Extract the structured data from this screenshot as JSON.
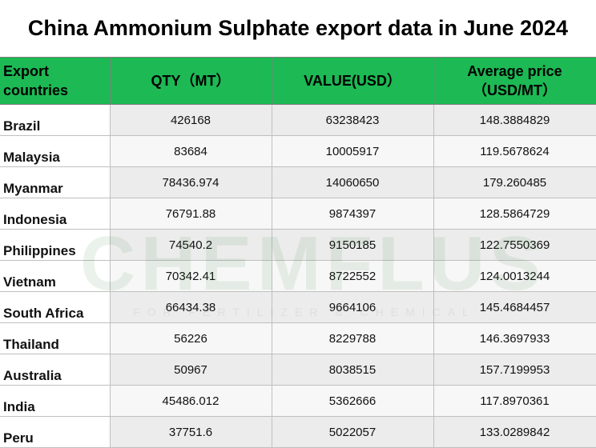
{
  "chart_data": {
    "type": "table",
    "title": "China Ammonium Sulphate export data in June 2024",
    "columns": [
      "Export countries",
      "QTY（MT）",
      "VALUE(USD）",
      "Average price（USD/MT）"
    ],
    "column_lines": [
      [
        "Export",
        "countries"
      ],
      [
        "QTY（MT）"
      ],
      [
        "VALUE(USD）"
      ],
      [
        "Average price",
        "（USD/MT）"
      ]
    ],
    "rows": [
      {
        "country": "Brazil",
        "qty": "426168",
        "value": "63238423",
        "avg_price": "148.3884829"
      },
      {
        "country": "Malaysia",
        "qty": "83684",
        "value": "10005917",
        "avg_price": "119.5678624"
      },
      {
        "country": "Myanmar",
        "qty": "78436.974",
        "value": "14060650",
        "avg_price": "179.260485"
      },
      {
        "country": "Indonesia",
        "qty": "76791.88",
        "value": "9874397",
        "avg_price": "128.5864729"
      },
      {
        "country": "Philippines",
        "qty": "74540.2",
        "value": "9150185",
        "avg_price": "122.7550369"
      },
      {
        "country": "Vietnam",
        "qty": "70342.41",
        "value": "8722552",
        "avg_price": "124.0013244"
      },
      {
        "country": "South Africa",
        "qty": "66434.38",
        "value": "9664106",
        "avg_price": "145.4684457"
      },
      {
        "country": "Thailand",
        "qty": "56226",
        "value": "8229788",
        "avg_price": "146.3697933"
      },
      {
        "country": "Australia",
        "qty": "50967",
        "value": "8038515",
        "avg_price": "157.7199953"
      },
      {
        "country": "India",
        "qty": "45486.012",
        "value": "5362666",
        "avg_price": "117.8970361"
      },
      {
        "country": "Peru",
        "qty": "37751.6",
        "value": "5022057",
        "avg_price": "133.0289842"
      }
    ]
  },
  "watermark": {
    "logo_text": "CHEMFLUS",
    "tagline": "FOR FERTILIZER & CHEMICAL"
  },
  "colors": {
    "header_green": "#1db954",
    "watermark_green": "#2e7d32"
  }
}
